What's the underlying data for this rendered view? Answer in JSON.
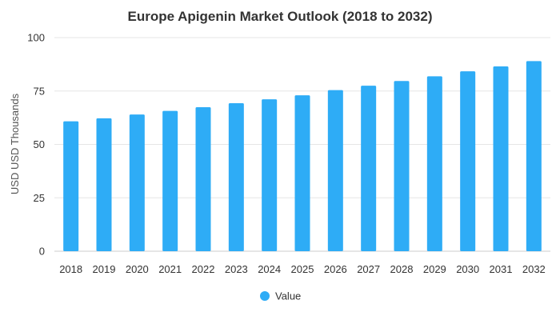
{
  "chart_data": {
    "type": "bar",
    "title": "Europe Apigenin Market Outlook (2018 to 2032)",
    "xlabel": "",
    "ylabel": "USD USD Thousands",
    "categories": [
      "2018",
      "2019",
      "2020",
      "2021",
      "2022",
      "2023",
      "2024",
      "2025",
      "2026",
      "2027",
      "2028",
      "2029",
      "2030",
      "2031",
      "2032"
    ],
    "series": [
      {
        "name": "Value",
        "color": "#2eacf6",
        "values": [
          60.8,
          62.2,
          64.0,
          65.7,
          67.4,
          69.3,
          71.1,
          73.0,
          75.4,
          77.5,
          79.7,
          81.9,
          84.2,
          86.5,
          89.0
        ]
      }
    ],
    "ylim": [
      0,
      100
    ],
    "yticks": [
      "0",
      "25",
      "50",
      "75",
      "100"
    ],
    "grid": true,
    "legend_position": "bottom"
  }
}
